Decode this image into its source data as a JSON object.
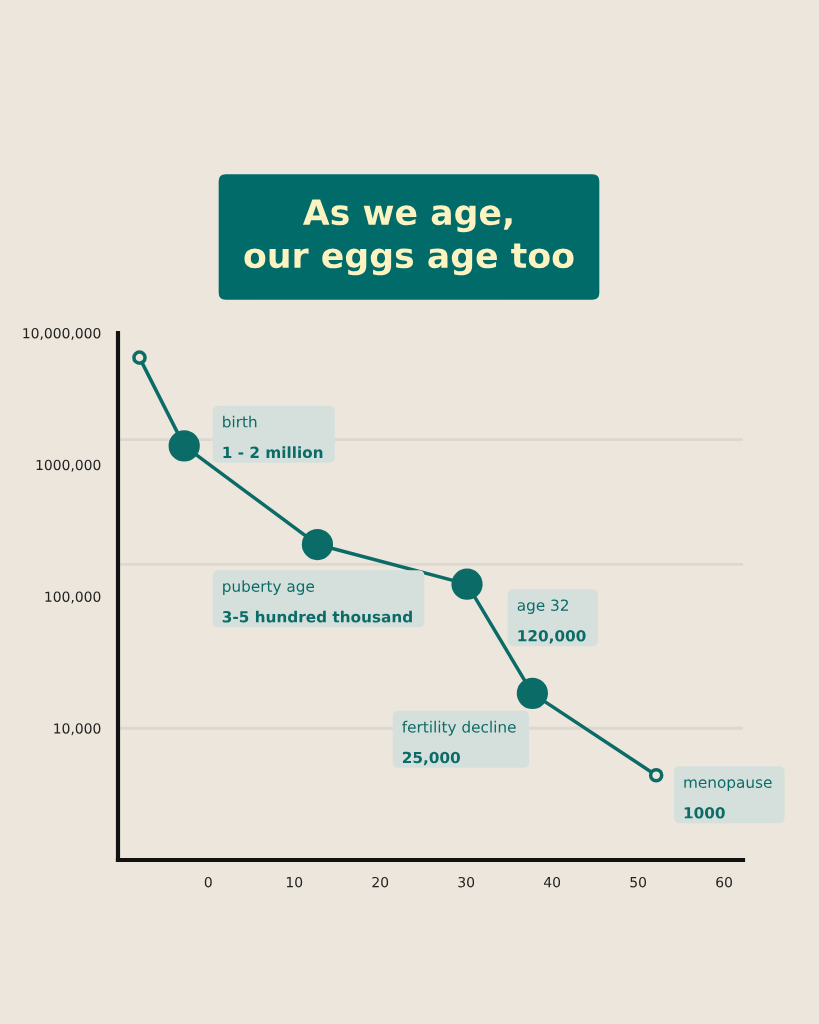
{
  "chart_data": {
    "type": "line",
    "title": "As we age,\nour eggs age too",
    "x": [
      -8.0,
      -2.8,
      12.7,
      30.1,
      37.7,
      52.1
    ],
    "series": [
      {
        "color": "#0b6b66",
        "values": [
          6500000,
          1390000,
          248000,
          124000,
          18400,
          4400
        ]
      }
    ],
    "log": "y",
    "marker": "circle",
    "line_style": "solid",
    "grid": false,
    "xlim": [
      -10.5,
      62.2
    ],
    "xticks": [
      0,
      10,
      20,
      30,
      40,
      50,
      60
    ],
    "ylim": [
      1000,
      10000000
    ],
    "yticks": [
      {
        "value": 10000000,
        "label": "10,000,000"
      },
      {
        "value": 1000000,
        "label": "1000,000"
      },
      {
        "value": 100000,
        "label": "100,000"
      },
      {
        "value": 10000,
        "label": "10,000"
      }
    ],
    "ref_lines": [
      {
        "axis": "y",
        "value": 1550000,
        "color": "#dcd8d1"
      },
      {
        "axis": "y",
        "value": 175000,
        "color": "#dcd8d1"
      },
      {
        "axis": "y",
        "value": 10000,
        "color": "#dcd8d1"
      }
    ],
    "annotations": [
      "birth\n1 - 2 million",
      "puberty age\n3-5 hundred thousand",
      "age 32\n120,000",
      "fertility decline\n25,000",
      "menopause\n1000"
    ]
  }
}
